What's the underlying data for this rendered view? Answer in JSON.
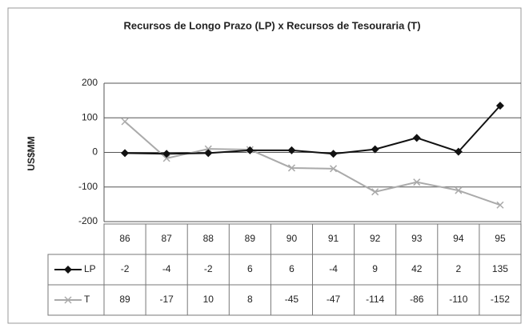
{
  "chart_data": {
    "type": "line",
    "title": "Recursos de Longo Prazo (LP) x Recursos de Tesouraria (T)",
    "y_label": "US$MM",
    "categories": [
      "86",
      "87",
      "88",
      "89",
      "90",
      "91",
      "92",
      "93",
      "94",
      "95"
    ],
    "series": [
      {
        "name": "LP",
        "color": "#111111",
        "marker": "diamond",
        "values": [
          -2,
          -4,
          -2,
          6,
          6,
          -4,
          9,
          42,
          2,
          135
        ]
      },
      {
        "name": "T",
        "color": "#aaaaaa",
        "marker": "x",
        "values": [
          89,
          -17,
          10,
          8,
          -45,
          -47,
          -114,
          -86,
          -110,
          -152
        ]
      }
    ],
    "ylim": [
      -200,
      200
    ],
    "yticks": [
      -200,
      -100,
      0,
      100,
      200
    ],
    "grid": true
  }
}
